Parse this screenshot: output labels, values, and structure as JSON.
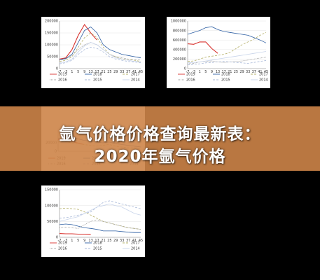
{
  "banner": {
    "line1": "氩气价格价格查询最新表：",
    "line2": "2020年氩气价格"
  },
  "colors": {
    "y2019": "#d8322e",
    "y2018": "#2e5fa3",
    "y2017": "#b5b06a",
    "y2016": "#999999",
    "y2015": "#a8b8d8",
    "y2014": "#c8d4ea"
  },
  "chart_data": [
    {
      "type": "line",
      "x_tick_labels": [
        "-7",
        "-3",
        "1",
        "5",
        "9",
        "13",
        "17",
        "21",
        "25",
        "29",
        "33",
        "37",
        "41",
        "45"
      ],
      "x": [
        -7,
        -3,
        1,
        5,
        9,
        13,
        17,
        21,
        25,
        29,
        33,
        37,
        41,
        45
      ],
      "y_tick_labels": [
        "0",
        "50000",
        "100000",
        "150000",
        "200000"
      ],
      "ylim": [
        0,
        200000
      ],
      "series": [
        {
          "name": "2019",
          "color_key": "y2019",
          "dash": "",
          "values": [
            40000,
            45000,
            80000,
            140000,
            185000,
            150000,
            120000,
            null,
            null,
            null,
            null,
            null,
            null,
            null
          ]
        },
        {
          "name": "2018",
          "color_key": "y2018",
          "dash": "",
          "values": [
            38000,
            42000,
            60000,
            110000,
            160000,
            175000,
            150000,
            100000,
            80000,
            70000,
            60000,
            55000,
            50000,
            45000
          ]
        },
        {
          "name": "2017",
          "color_key": "y2017",
          "dash": "3,2",
          "values": [
            30000,
            35000,
            50000,
            90000,
            130000,
            150000,
            130000,
            90000,
            60000,
            50000,
            40000,
            40000,
            35000,
            30000
          ]
        },
        {
          "name": "2016",
          "color_key": "y2016",
          "dash": "1,1",
          "values": [
            35000,
            40000,
            55000,
            80000,
            100000,
            110000,
            100000,
            80000,
            60000,
            50000,
            45000,
            40000,
            38000,
            36000
          ]
        },
        {
          "name": "2015",
          "color_key": "y2015",
          "dash": "3,2",
          "values": [
            20000,
            25000,
            35000,
            60000,
            80000,
            90000,
            85000,
            70000,
            50000,
            40000,
            35000,
            30000,
            28000,
            25000
          ]
        },
        {
          "name": "2014",
          "color_key": "y2014",
          "dash": "",
          "values": [
            25000,
            28000,
            40000,
            70000,
            95000,
            110000,
            100000,
            80000,
            60000,
            45000,
            40000,
            35000,
            30000,
            28000
          ]
        }
      ]
    },
    {
      "type": "line",
      "x_tick_labels": [
        "-7",
        "-3",
        "1",
        "5",
        "9",
        "13",
        "17",
        "21",
        "25",
        "29",
        "33",
        "37",
        "41",
        "45"
      ],
      "x": [
        -7,
        -3,
        1,
        5,
        9,
        13,
        17,
        21,
        25,
        29,
        33,
        37,
        41,
        45
      ],
      "y_tick_labels": [
        "0",
        "200000",
        "400000",
        "600000",
        "800000",
        "1000000"
      ],
      "ylim": [
        0,
        1000000
      ],
      "series": [
        {
          "name": "2019",
          "color_key": "y2019",
          "dash": "",
          "values": [
            520000,
            510000,
            560000,
            560000,
            420000,
            320000,
            null,
            null,
            null,
            null,
            null,
            null,
            null,
            null
          ]
        },
        {
          "name": "2018",
          "color_key": "y2018",
          "dash": "",
          "values": [
            720000,
            760000,
            800000,
            860000,
            880000,
            820000,
            780000,
            760000,
            740000,
            720000,
            700000,
            650000,
            600000,
            540000
          ]
        },
        {
          "name": "2017",
          "color_key": "y2017",
          "dash": "3,2",
          "values": [
            150000,
            160000,
            200000,
            240000,
            260000,
            280000,
            300000,
            340000,
            420000,
            500000,
            560000,
            620000,
            700000,
            760000
          ]
        },
        {
          "name": "2016",
          "color_key": "y2016",
          "dash": "1,1",
          "values": [
            100000,
            110000,
            140000,
            150000,
            160000,
            140000,
            130000,
            140000,
            150000,
            160000,
            180000,
            200000,
            220000,
            240000
          ]
        },
        {
          "name": "2015",
          "color_key": "y2015",
          "dash": "3,2",
          "values": [
            80000,
            90000,
            100000,
            120000,
            130000,
            140000,
            150000,
            140000,
            130000,
            120000,
            110000,
            130000,
            150000,
            170000
          ]
        },
        {
          "name": "2014",
          "color_key": "y2014",
          "dash": "",
          "values": [
            120000,
            130000,
            140000,
            160000,
            180000,
            200000,
            220000,
            240000,
            260000,
            280000,
            300000,
            320000,
            340000,
            360000
          ]
        }
      ]
    },
    {
      "type": "line",
      "x_tick_labels": [],
      "x": [
        -7,
        -3,
        1,
        5,
        9,
        13,
        17,
        21,
        25,
        29,
        33,
        37,
        41,
        45
      ],
      "y_tick_labels": [
        "20000",
        "0"
      ],
      "ylim": [
        0,
        50000
      ],
      "series": [
        {
          "name": "2019",
          "color_key": "y2019",
          "dash": "",
          "values": [
            28000,
            26000,
            24000,
            20000,
            16000,
            null,
            null,
            null,
            null,
            null,
            null,
            null,
            null,
            null
          ]
        },
        {
          "name": "2018",
          "color_key": "y2018",
          "dash": "",
          "values": [
            30000,
            34000,
            36000,
            30000,
            26000,
            24000,
            22000,
            20000,
            22000,
            18000,
            16000,
            14000,
            12000,
            10000
          ]
        },
        {
          "name": "2017",
          "color_key": "y2017",
          "dash": "3,2",
          "values": [
            22000,
            24000,
            20000,
            18000,
            16000,
            14000,
            12000,
            14000,
            16000,
            12000,
            10000,
            8000,
            8000,
            6000
          ]
        }
      ],
      "legend_labels": [
        "2016",
        "2015",
        "2014"
      ]
    },
    {
      "type": "line",
      "x_tick_labels": [
        "-7",
        "-3",
        "1",
        "5",
        "9",
        "13",
        "17",
        "21",
        "25",
        "29",
        "33",
        "37",
        "41",
        "45"
      ],
      "x": [
        -7,
        -3,
        1,
        5,
        9,
        13,
        17,
        21,
        25,
        29,
        33,
        37,
        41,
        45
      ],
      "y_tick_labels": [
        "0",
        "50000",
        "100000",
        "150000"
      ],
      "ylim": [
        0,
        150000
      ],
      "series": [
        {
          "name": "2019",
          "color_key": "y2019",
          "dash": "",
          "values": [
            12000,
            11000,
            11000,
            10000,
            10000,
            9000,
            null,
            null,
            null,
            null,
            null,
            null,
            null,
            null
          ]
        },
        {
          "name": "2018",
          "color_key": "y2018",
          "dash": "",
          "values": [
            40000,
            42000,
            40000,
            35000,
            30000,
            28000,
            25000,
            20000,
            20000,
            20000,
            18000,
            16000,
            15000,
            15000
          ]
        },
        {
          "name": "2017",
          "color_key": "y2017",
          "dash": "3,2",
          "values": [
            90000,
            92000,
            90000,
            88000,
            80000,
            70000,
            60000,
            50000,
            45000,
            40000,
            35000,
            30000,
            28000,
            25000
          ]
        },
        {
          "name": "2016",
          "color_key": "y2016",
          "dash": "1,1",
          "values": [
            30000,
            32000,
            30000,
            28000,
            40000,
            50000,
            55000,
            50000,
            45000,
            40000,
            35000,
            30000,
            28000,
            25000
          ]
        },
        {
          "name": "2015",
          "color_key": "y2015",
          "dash": "3,2",
          "values": [
            60000,
            62000,
            65000,
            70000,
            75000,
            80000,
            95000,
            110000,
            115000,
            110000,
            105000,
            100000,
            95000,
            90000
          ]
        },
        {
          "name": "2014",
          "color_key": "y2014",
          "dash": "",
          "values": [
            50000,
            55000,
            60000,
            65000,
            75000,
            85000,
            95000,
            100000,
            105000,
            100000,
            95000,
            85000,
            75000,
            70000
          ]
        }
      ]
    }
  ]
}
